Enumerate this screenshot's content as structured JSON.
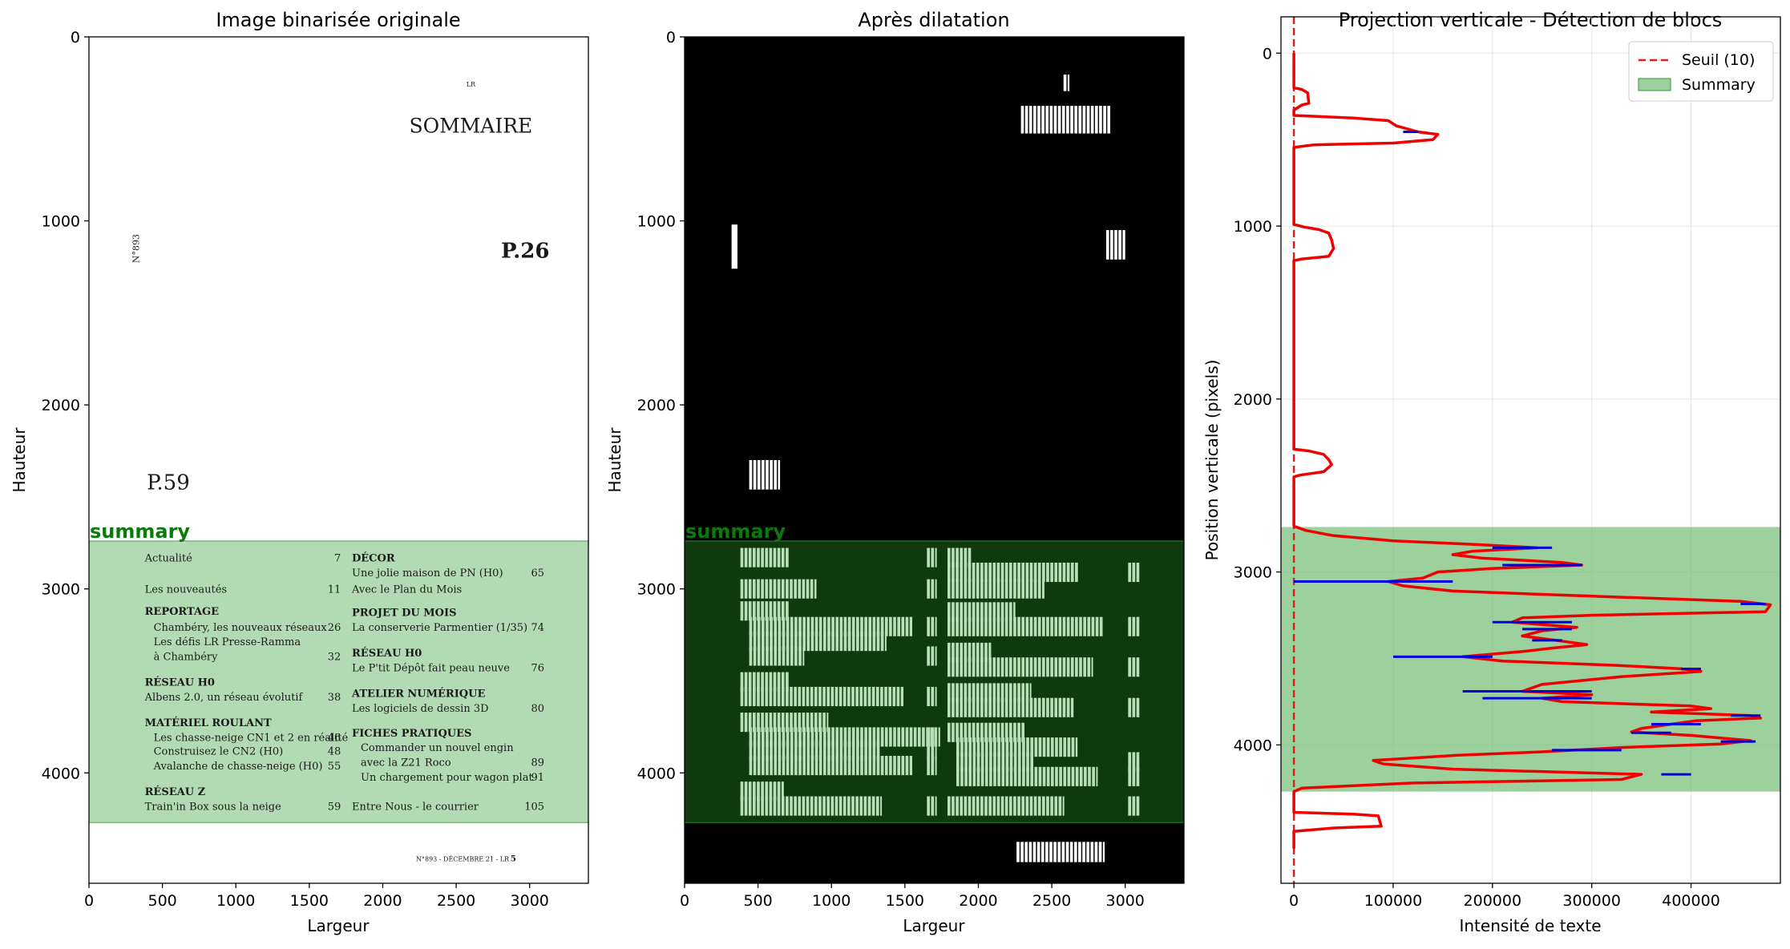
{
  "chart_data": [
    {
      "type": "image",
      "title": "Image binarisée originale",
      "xlabel": "Largeur",
      "ylabel": "Hauteur",
      "xlim": [
        0,
        3400
      ],
      "ylim": [
        4600,
        0
      ],
      "xticks": [
        0,
        500,
        1000,
        1500,
        2000,
        2500,
        3000
      ],
      "yticks": [
        0,
        1000,
        2000,
        3000,
        4000
      ],
      "region": {
        "label": "summary",
        "y_start": 2740,
        "y_end": 4270
      },
      "page_text": {
        "lr": "LR",
        "sommaire": "SOMMAIRE",
        "issue": "N°893",
        "p26": "P.26",
        "p59": "P.59",
        "footer": "N°893 - DÉCEMBRE 21 - LR",
        "page_no": "5"
      },
      "toc_left": [
        {
          "text": "Actualité",
          "page": "7",
          "bold": false,
          "y": 2830
        },
        {
          "text": "Les nouveautés",
          "page": "11",
          "bold": false,
          "y": 3000
        },
        {
          "text": "REPORTAGE",
          "page": "",
          "bold": true,
          "y": 3120
        },
        {
          "text": "Chambéry, les nouveaux réseaux",
          "page": "26",
          "bold": false,
          "indent": true,
          "y": 3205
        },
        {
          "text": "Les défis LR Presse-Ramma",
          "page": "",
          "bold": false,
          "indent": true,
          "y": 3285
        },
        {
          "text": "à Chambéry",
          "page": "32",
          "bold": false,
          "indent": true,
          "y": 3365
        },
        {
          "text": "RÉSEAU H0",
          "page": "",
          "bold": true,
          "y": 3505
        },
        {
          "text": "Albens 2.0, un réseau évolutif",
          "page": "38",
          "bold": false,
          "y": 3585
        },
        {
          "text": "MATÉRIEL ROULANT",
          "page": "",
          "bold": true,
          "y": 3725
        },
        {
          "text": "Les chasse-neige CN1 et 2 en réalité",
          "page": "46",
          "bold": false,
          "indent": true,
          "y": 3805
        },
        {
          "text": "Construisez le CN2  (H0)",
          "page": "48",
          "bold": false,
          "indent": true,
          "y": 3880
        },
        {
          "text": "Avalanche de chasse-neige (H0)",
          "page": "55",
          "bold": false,
          "indent": true,
          "y": 3960
        },
        {
          "text": "RÉSEAU Z",
          "page": "",
          "bold": true,
          "y": 4100
        },
        {
          "text": "Train'in Box sous la neige",
          "page": "59",
          "bold": false,
          "y": 4180
        }
      ],
      "toc_right": [
        {
          "text": "DÉCOR",
          "page": "",
          "bold": true,
          "y": 2830
        },
        {
          "text": "Une jolie maison de PN (H0)",
          "page": "65",
          "bold": false,
          "y": 2910
        },
        {
          "text": "Avec le Plan du Mois",
          "page": "",
          "bold": false,
          "y": 3000
        },
        {
          "text": "PROJET DU MOIS",
          "page": "",
          "bold": true,
          "y": 3125
        },
        {
          "text": "La conserverie Parmentier (1/35)",
          "page": "74",
          "bold": false,
          "y": 3205
        },
        {
          "text": "RÉSEAU H0",
          "page": "",
          "bold": true,
          "y": 3345
        },
        {
          "text": "Le P'tit Dépôt fait peau neuve",
          "page": "76",
          "bold": false,
          "y": 3425
        },
        {
          "text": "ATELIER NUMÉRIQUE",
          "page": "",
          "bold": true,
          "y": 3565
        },
        {
          "text": "Les logiciels de dessin 3D",
          "page": "80",
          "bold": false,
          "y": 3645
        },
        {
          "text": "FICHES PRATIQUES",
          "page": "",
          "bold": true,
          "y": 3780
        },
        {
          "text": "Commander un nouvel engin",
          "page": "",
          "bold": false,
          "indent": true,
          "y": 3860
        },
        {
          "text": "avec la Z21 Roco",
          "page": "89",
          "bold": false,
          "indent": true,
          "y": 3940
        },
        {
          "text": "Un chargement pour wagon plat",
          "page": "91",
          "bold": false,
          "indent": true,
          "y": 4020
        },
        {
          "text": "Entre Nous - le courrier",
          "page": "105",
          "bold": false,
          "y": 4180
        }
      ]
    },
    {
      "type": "image",
      "title": "Après dilatation",
      "xlabel": "Largeur",
      "ylabel": "Hauteur",
      "xlim": [
        0,
        3400
      ],
      "ylim": [
        4600,
        0
      ],
      "xticks": [
        0,
        500,
        1000,
        1500,
        2000,
        2500,
        3000
      ],
      "yticks": [
        0,
        1000,
        2000,
        3000,
        4000
      ],
      "region": {
        "label": "summary",
        "y_start": 2740,
        "y_end": 4270
      }
    },
    {
      "type": "line",
      "title": "Projection verticale - Détection de blocs",
      "xlabel": "Intensité de texte",
      "ylabel": "Position verticale (pixels)",
      "xlim": [
        -13000,
        490000
      ],
      "ylim": [
        4800,
        -210
      ],
      "xticks": [
        0,
        100000,
        200000,
        300000,
        400000
      ],
      "yticks": [
        0,
        1000,
        2000,
        3000,
        4000
      ],
      "grid": true,
      "legend": {
        "position": "top-right",
        "entries": [
          "Seuil (10)",
          "Summary"
        ]
      },
      "threshold": {
        "name": "Seuil (10)",
        "x": 10,
        "color": "#e41a1c"
      },
      "span": {
        "name": "Summary",
        "y_start": 2740,
        "y_end": 4270,
        "color": "#5fb35f"
      },
      "series": [
        {
          "name": "projection",
          "color": "#ee0000",
          "points": [
            [
              0,
              0
            ],
            [
              0,
              200
            ],
            [
              8000,
              210
            ],
            [
              14000,
              230
            ],
            [
              15000,
              290
            ],
            [
              8000,
              300
            ],
            [
              0,
              330
            ],
            [
              0,
              360
            ],
            [
              60000,
              375
            ],
            [
              95000,
              390
            ],
            [
              103000,
              420
            ],
            [
              125000,
              455
            ],
            [
              145000,
              470
            ],
            [
              140000,
              500
            ],
            [
              100000,
              520
            ],
            [
              20000,
              530
            ],
            [
              0,
              545
            ],
            [
              0,
              990
            ],
            [
              10000,
              1005
            ],
            [
              25000,
              1020
            ],
            [
              35000,
              1040
            ],
            [
              38000,
              1080
            ],
            [
              40000,
              1130
            ],
            [
              35000,
              1175
            ],
            [
              8000,
              1190
            ],
            [
              0,
              1200
            ],
            [
              0,
              2290
            ],
            [
              15000,
              2300
            ],
            [
              30000,
              2320
            ],
            [
              35000,
              2350
            ],
            [
              38000,
              2380
            ],
            [
              30000,
              2420
            ],
            [
              6000,
              2440
            ],
            [
              0,
              2450
            ],
            [
              0,
              2735
            ],
            [
              12000,
              2760
            ],
            [
              40000,
              2790
            ],
            [
              100000,
              2820
            ],
            [
              180000,
              2840
            ],
            [
              245000,
              2860
            ],
            [
              180000,
              2880
            ],
            [
              160000,
              2900
            ],
            [
              190000,
              2920
            ],
            [
              270000,
              2945
            ],
            [
              290000,
              2960
            ],
            [
              200000,
              2980
            ],
            [
              145000,
              3000
            ],
            [
              130000,
              3035
            ],
            [
              95000,
              3055
            ],
            [
              110000,
              3080
            ],
            [
              160000,
              3110
            ],
            [
              300000,
              3140
            ],
            [
              450000,
              3170
            ],
            [
              480000,
              3190
            ],
            [
              475000,
              3230
            ],
            [
              300000,
              3250
            ],
            [
              230000,
              3265
            ],
            [
              220000,
              3290
            ],
            [
              285000,
              3320
            ],
            [
              250000,
              3340
            ],
            [
              230000,
              3370
            ],
            [
              270000,
              3400
            ],
            [
              295000,
              3420
            ],
            [
              260000,
              3440
            ],
            [
              230000,
              3460
            ],
            [
              170000,
              3490
            ],
            [
              210000,
              3515
            ],
            [
              325000,
              3540
            ],
            [
              390000,
              3560
            ],
            [
              410000,
              3575
            ],
            [
              330000,
              3605
            ],
            [
              250000,
              3650
            ],
            [
              230000,
              3690
            ],
            [
              300000,
              3710
            ],
            [
              250000,
              3730
            ],
            [
              270000,
              3750
            ],
            [
              400000,
              3775
            ],
            [
              420000,
              3790
            ],
            [
              360000,
              3810
            ],
            [
              460000,
              3830
            ],
            [
              470000,
              3845
            ],
            [
              405000,
              3860
            ],
            [
              380000,
              3880
            ],
            [
              350000,
              3905
            ],
            [
              340000,
              3925
            ],
            [
              400000,
              3945
            ],
            [
              430000,
              3960
            ],
            [
              460000,
              3975
            ],
            [
              430000,
              3995
            ],
            [
              330000,
              4015
            ],
            [
              250000,
              4040
            ],
            [
              165000,
              4060
            ],
            [
              80000,
              4090
            ],
            [
              90000,
              4110
            ],
            [
              160000,
              4140
            ],
            [
              350000,
              4170
            ],
            [
              330000,
              4200
            ],
            [
              120000,
              4220
            ],
            [
              8000,
              4250
            ],
            [
              0,
              4270
            ],
            [
              0,
              4390
            ],
            [
              60000,
              4400
            ],
            [
              85000,
              4410
            ],
            [
              88000,
              4470
            ],
            [
              40000,
              4480
            ],
            [
              0,
              4500
            ],
            [
              0,
              4600
            ]
          ]
        },
        {
          "name": "markers",
          "color": "#0000dd",
          "segments": [
            [
              110000,
              125000,
              455
            ],
            [
              200000,
              260000,
              2860
            ],
            [
              210000,
              290000,
              2960
            ],
            [
              0,
              160000,
              3055
            ],
            [
              450000,
              475000,
              3185
            ],
            [
              200000,
              280000,
              3290
            ],
            [
              230000,
              280000,
              3330
            ],
            [
              240000,
              270000,
              3395
            ],
            [
              100000,
              200000,
              3490
            ],
            [
              390000,
              410000,
              3560
            ],
            [
              170000,
              300000,
              3690
            ],
            [
              190000,
              300000,
              3730
            ],
            [
              440000,
              470000,
              3830
            ],
            [
              360000,
              410000,
              3880
            ],
            [
              340000,
              380000,
              3930
            ],
            [
              430000,
              465000,
              3980
            ],
            [
              260000,
              330000,
              4030
            ],
            [
              370000,
              400000,
              4170
            ]
          ]
        }
      ]
    }
  ]
}
